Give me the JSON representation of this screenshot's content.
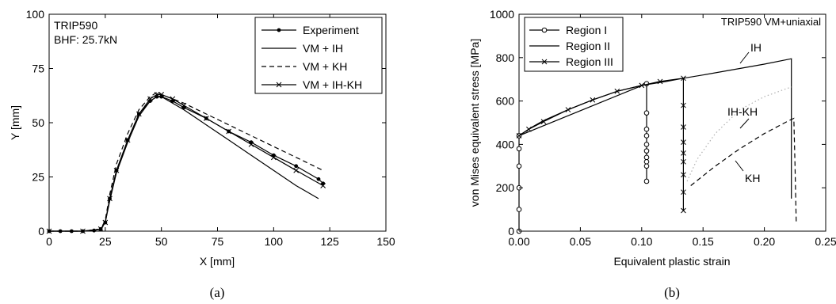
{
  "colors": {
    "axis": "#000000",
    "series": "#000000",
    "ihkh_dotted": "#b0b0b0"
  },
  "chart_data": [
    {
      "type": "line",
      "caption": "(a)",
      "xlabel": "X [mm]",
      "ylabel": "Y [mm]",
      "xlim": [
        0,
        150
      ],
      "ylim": [
        0,
        100
      ],
      "xticks": [
        0,
        25,
        50,
        75,
        100,
        125,
        150
      ],
      "yticks": [
        0,
        25,
        50,
        75,
        100
      ],
      "annotations": [
        "TRIP590",
        "BHF: 25.7kN"
      ],
      "legend_position": "top-right",
      "grid": false,
      "series": [
        {
          "name": "Experiment",
          "style": "solid",
          "marker": "dot",
          "x": [
            0,
            5,
            10,
            15,
            20,
            23,
            25,
            27,
            30,
            35,
            40,
            45,
            48,
            50,
            55,
            60,
            70,
            80,
            90,
            100,
            110,
            120,
            122
          ],
          "y": [
            0,
            0,
            0,
            0,
            0.3,
            1,
            4,
            15,
            28,
            42,
            54,
            60,
            62,
            62,
            60,
            57,
            52,
            46,
            41,
            35,
            30,
            24,
            22
          ]
        },
        {
          "name": "VM + IH",
          "style": "solid",
          "marker": "none",
          "x": [
            0,
            15,
            23,
            25,
            27,
            30,
            35,
            40,
            45,
            48,
            50,
            60,
            70,
            80,
            90,
            100,
            110,
            120
          ],
          "y": [
            0,
            0,
            1,
            4,
            14,
            27,
            41,
            53,
            60,
            62,
            62,
            56,
            49,
            42,
            35,
            28,
            21,
            15
          ]
        },
        {
          "name": "VM + KH",
          "style": "dashed",
          "marker": "none",
          "x": [
            0,
            15,
            23,
            25,
            27,
            30,
            35,
            40,
            45,
            48,
            50,
            60,
            70,
            80,
            90,
            100,
            110,
            122
          ],
          "y": [
            0,
            0,
            1,
            5,
            17,
            31,
            45,
            56,
            62,
            64,
            63,
            59,
            54,
            49,
            44,
            39,
            34,
            28
          ]
        },
        {
          "name": "VM + IH-KH",
          "style": "solid",
          "marker": "x",
          "x": [
            0,
            15,
            23,
            25,
            27,
            30,
            35,
            40,
            45,
            48,
            50,
            55,
            60,
            70,
            80,
            90,
            100,
            110,
            122
          ],
          "y": [
            0,
            0,
            1,
            4,
            15,
            28,
            42,
            54,
            61,
            63,
            63,
            61,
            58,
            52,
            46,
            40,
            34,
            28,
            21
          ]
        }
      ]
    },
    {
      "type": "line",
      "caption": "(b)",
      "xlabel": "Equivalent plastic strain",
      "ylabel": "von Mises equivalent stress [MPa]",
      "xlim": [
        0,
        0.25
      ],
      "ylim": [
        0,
        1000
      ],
      "xticks": [
        "0.00",
        "0.05",
        "0.10",
        "0.15",
        "0.20",
        "0.25"
      ],
      "yticks": [
        0,
        200,
        400,
        600,
        800,
        1000
      ],
      "annotations": [
        "TRIP590 VM+uniaxial",
        "IH",
        "IH-KH",
        "KH"
      ],
      "legend_position": "top-left",
      "grid": false,
      "series": [
        {
          "name": "Region I",
          "style": "solid",
          "marker": "o",
          "x": [
            0.0,
            0.0,
            0.0,
            0.0,
            0.0,
            0.0,
            0.104,
            0.104,
            0.104,
            0.104,
            0.104,
            0.104,
            0.104,
            0.104,
            0.104,
            0.104
          ],
          "y": [
            0,
            100,
            200,
            300,
            380,
            440,
            680,
            545,
            470,
            440,
            400,
            370,
            340,
            320,
            300,
            230
          ]
        },
        {
          "name": "Region II",
          "style": "solid",
          "marker": "none",
          "x": [
            0.0,
            0.01,
            0.02,
            0.04,
            0.06,
            0.08,
            0.1,
            0.12,
            0.134,
            0.15,
            0.18,
            0.2,
            0.222,
            0.222,
            0.222
          ],
          "y": [
            440,
            478,
            510,
            560,
            605,
            645,
            672,
            690,
            705,
            720,
            750,
            770,
            795,
            420,
            150
          ]
        },
        {
          "name": "Region III",
          "style": "solid",
          "marker": "x",
          "x": [
            0.0,
            0.008,
            0.02,
            0.04,
            0.06,
            0.08,
            0.1,
            0.115,
            0.134,
            0.134,
            0.134,
            0.134,
            0.134,
            0.134,
            0.134,
            0.134,
            0.134
          ],
          "y": [
            440,
            470,
            505,
            560,
            605,
            645,
            672,
            690,
            705,
            580,
            480,
            410,
            360,
            320,
            260,
            180,
            95
          ]
        },
        {
          "name": "",
          "style": "dotted",
          "marker": "none",
          "x": [
            0.137,
            0.145,
            0.16,
            0.18,
            0.2,
            0.222
          ],
          "y": [
            230,
            330,
            450,
            560,
            620,
            665
          ]
        },
        {
          "name": "",
          "style": "dashed",
          "marker": "none",
          "x": [
            0.14,
            0.16,
            0.18,
            0.2,
            0.22,
            0.224,
            0.225,
            0.226
          ],
          "y": [
            210,
            300,
            380,
            450,
            510,
            520,
            300,
            40
          ]
        }
      ]
    }
  ]
}
